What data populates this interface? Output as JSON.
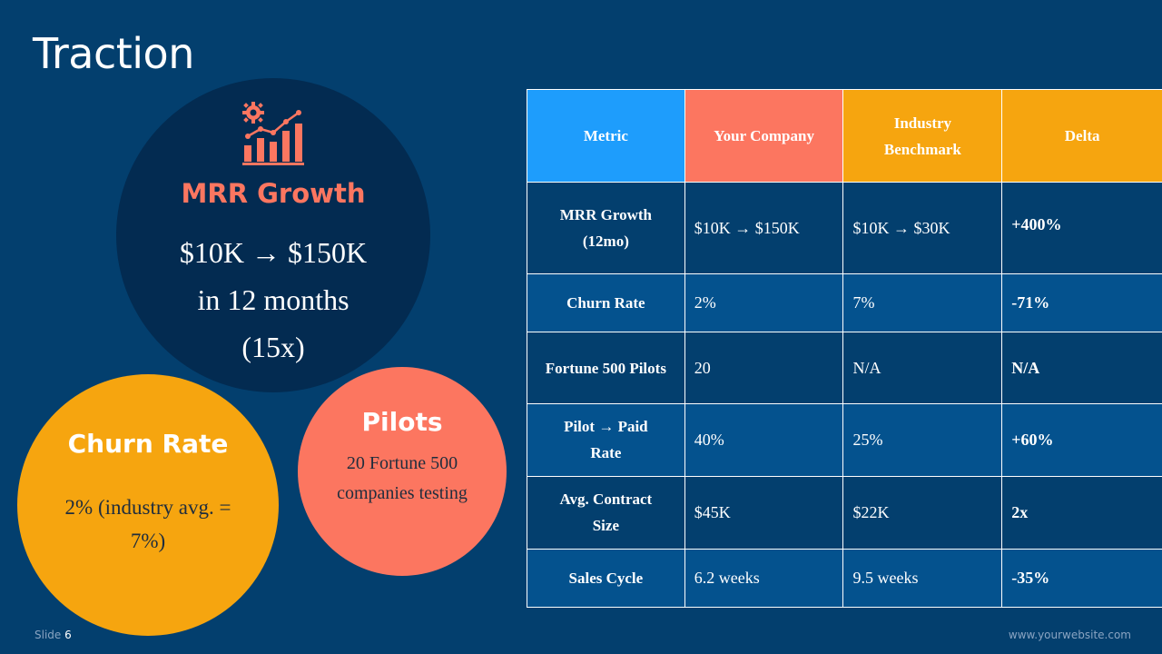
{
  "slide": {
    "title": "Traction",
    "footer_label": "Slide",
    "footer_number": "6",
    "website": "www.yourwebsite.com"
  },
  "colors": {
    "background": "#033f6e",
    "navy": "#032b51",
    "coral": "#fc7660",
    "amber": "#f6a50f",
    "blue": "#1e9dfc"
  },
  "mrr_circle": {
    "icon": "growth-chart-gear-icon",
    "title": "MRR Growth",
    "lines": [
      "$10K → $150K",
      "in 12 months",
      "(15x)"
    ]
  },
  "churn_circle": {
    "title": "Churn Rate",
    "lines": [
      "2% (industry avg. =",
      "7%)"
    ]
  },
  "pilots_circle": {
    "title": "Pilots",
    "lines": [
      "20 Fortune 500",
      "companies testing"
    ]
  },
  "table": {
    "headers": {
      "metric": "Metric",
      "company": "Your Company",
      "bench_1": "Industry",
      "bench_2": "Benchmark",
      "delta": "Delta"
    },
    "rows": [
      {
        "metric_1": "MRR Growth",
        "metric_2": "(12mo)",
        "company": "$10K → $150K",
        "benchmark": "$10K → $30K",
        "delta": "+400%"
      },
      {
        "metric_1": "Churn Rate",
        "metric_2": "",
        "company": "2%",
        "benchmark": "7%",
        "delta": "-71%"
      },
      {
        "metric_1": "Fortune 500 Pilots",
        "metric_2": "",
        "company": "20",
        "benchmark": "N/A",
        "delta": "N/A"
      },
      {
        "metric_1": "Pilot → Paid",
        "metric_2": "Rate",
        "company": "40%",
        "benchmark": "25%",
        "delta": "+60%"
      },
      {
        "metric_1": "Avg. Contract",
        "metric_2": "Size",
        "company": "$45K",
        "benchmark": "$22K",
        "delta": "2x"
      },
      {
        "metric_1": "Sales Cycle",
        "metric_2": "",
        "company": "6.2 weeks",
        "benchmark": "9.5 weeks",
        "delta": "-35%"
      }
    ]
  }
}
